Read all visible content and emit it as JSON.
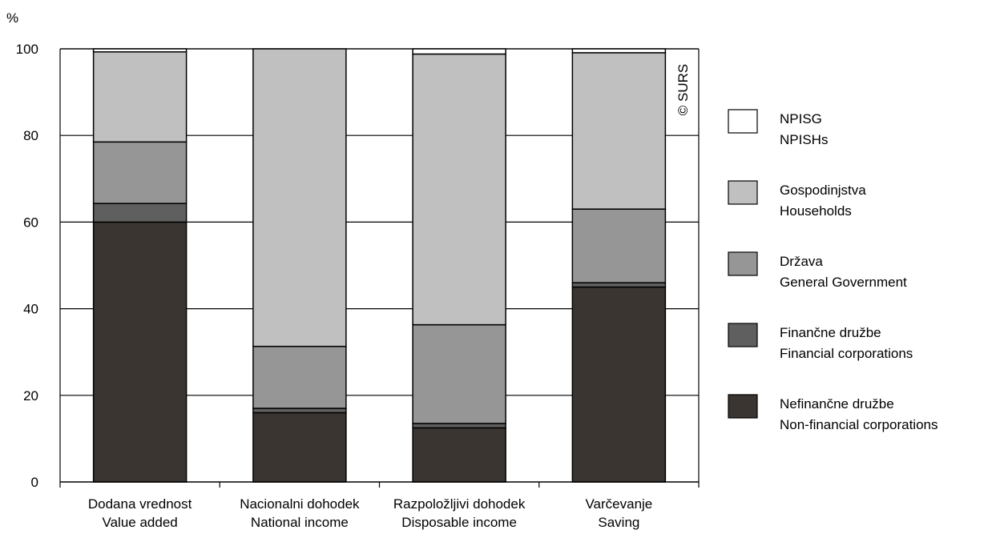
{
  "chart_data": {
    "type": "bar",
    "stacked": true,
    "ylabel": "%",
    "ylim": [
      0,
      100
    ],
    "yticks": [
      "0",
      "20",
      "40",
      "60",
      "80",
      "100"
    ],
    "grid": true,
    "legend_position": "right",
    "watermark": "© SURS",
    "categories": [
      [
        "Dodana vrednost",
        "Value added"
      ],
      [
        "Nacionalni dohodek",
        "National income"
      ],
      [
        "Razpoložljivi dohodek",
        "Disposable income"
      ],
      [
        "Varčevanje",
        "Saving"
      ]
    ],
    "series": [
      {
        "name": [
          "Nefinančne družbe",
          "Non-financial corporations"
        ],
        "color": "#3a3530",
        "values": [
          60,
          16,
          12.5,
          45
        ]
      },
      {
        "name": [
          "Finančne družbe",
          "Financial corporations"
        ],
        "color": "#5f5f5f",
        "values": [
          4.3,
          1,
          1,
          1
        ]
      },
      {
        "name": [
          "Država",
          "General Government"
        ],
        "color": "#969696",
        "values": [
          14.2,
          14.3,
          22.8,
          17
        ]
      },
      {
        "name": [
          "Gospodinjstva",
          "Households"
        ],
        "color": "#c0c0c0",
        "values": [
          20.8,
          68.7,
          62.5,
          36.1
        ]
      },
      {
        "name": [
          "NPISG",
          "NPISHs"
        ],
        "color": "#ffffff",
        "values": [
          0.7,
          0,
          1.2,
          0.9
        ]
      }
    ]
  }
}
